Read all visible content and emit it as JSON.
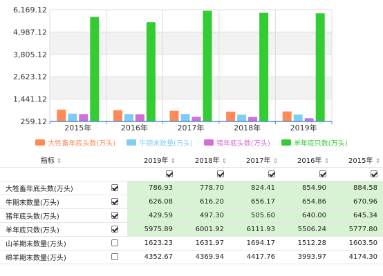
{
  "chart_data": {
    "type": "bar",
    "categories": [
      "2015年",
      "2016年",
      "2017年",
      "2018年",
      "2019年"
    ],
    "series": [
      {
        "name": "大牲畜年底头数(万头)",
        "color": "#ff8a56",
        "values": [
          884.58,
          854.9,
          824.41,
          778.7,
          786.93
        ]
      },
      {
        "name": "牛期末数量(万头)",
        "color": "#80ccf5",
        "values": [
          670.96,
          654.86,
          656.17,
          616.2,
          626.08
        ]
      },
      {
        "name": "猪年底头数(万头)",
        "color": "#d26ed7",
        "values": [
          645.34,
          640.0,
          505.6,
          497.3,
          429.59
        ]
      },
      {
        "name": "羊年底只数(万头)",
        "color": "#33cc33",
        "values": [
          5777.8,
          5506.24,
          6111.93,
          6001.92,
          5975.89
        ]
      }
    ],
    "y_ticks": [
      "6,169.12",
      "4,987.12",
      "3,805.12",
      "2,623.12",
      "1,441.12",
      "259.12"
    ],
    "ylim": [
      259.12,
      6169.12
    ],
    "grid": true,
    "legend_position": "bottom"
  },
  "table": {
    "header": {
      "indicator": "指标",
      "years": [
        "2019年",
        "2018年",
        "2017年",
        "2016年",
        "2015年"
      ],
      "sort_icon": "⇕"
    },
    "rows": [
      {
        "name": "大牲畜年底头数(万头)",
        "checked": true,
        "values": [
          "786.93",
          "778.70",
          "824.41",
          "854.90",
          "884.58"
        ]
      },
      {
        "name": "牛期末数量(万头)",
        "checked": true,
        "values": [
          "626.08",
          "616.20",
          "656.17",
          "654.86",
          "670.96"
        ]
      },
      {
        "name": "猪年底头数(万头)",
        "checked": true,
        "values": [
          "429.59",
          "497.30",
          "505.60",
          "640.00",
          "645.34"
        ]
      },
      {
        "name": "羊年底只数(万头)",
        "checked": true,
        "values": [
          "5975.89",
          "6001.92",
          "6111.93",
          "5506.24",
          "5777.80"
        ]
      },
      {
        "name": "山羊期末数量(万头)",
        "checked": false,
        "values": [
          "1623.23",
          "1631.97",
          "1694.17",
          "1512.28",
          "1603.50"
        ]
      },
      {
        "name": "绵羊期末数量(万头)",
        "checked": false,
        "values": [
          "4352.67",
          "4369.94",
          "4417.76",
          "3993.97",
          "4174.30"
        ]
      }
    ]
  }
}
